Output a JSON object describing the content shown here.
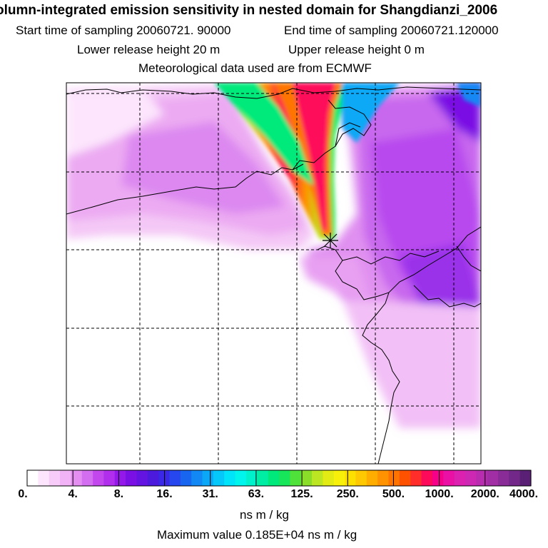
{
  "header": {
    "title": "olumn-integrated emission sensitivity in nested domain for Shangdianzi_2006",
    "start_time": "Start time of sampling 20060721. 90000",
    "end_time": "End time of sampling 20060721.120000",
    "lower_height": "Lower release height   20 m",
    "upper_height": "Upper release height    0 m",
    "met_data": "Meteorological data used are from ECMWF"
  },
  "colorbar": {
    "tick_labels": [
      "0.",
      "4.",
      "8.",
      "16.",
      "31.",
      "63.",
      "125.",
      "250.",
      "500.",
      "1000.",
      "2000.",
      "4000."
    ],
    "colors": [
      "#ffffff",
      "#fde6fd",
      "#f8ccf8",
      "#f2b2f6",
      "#e48ef2",
      "#d46ef0",
      "#c248ee",
      "#b02eec",
      "#9418ea",
      "#7a10e4",
      "#6414e0",
      "#4c1adc",
      "#3a28e6",
      "#2646ee",
      "#1866f0",
      "#1288f4",
      "#0aa8f6",
      "#06c8f8",
      "#00e4fa",
      "#00f6ec",
      "#00f2cc",
      "#00eea4",
      "#00ea7c",
      "#18e65a",
      "#4ee23a",
      "#8ade2a",
      "#bce622",
      "#e2ec14",
      "#f6f00a",
      "#fee000",
      "#ffc800",
      "#ffae00",
      "#ff9200",
      "#ff7400",
      "#ff5200",
      "#ff2e2a",
      "#fe0a5a",
      "#f6008a",
      "#ea10a6",
      "#dc20b0",
      "#cc28b4",
      "#b82cb0",
      "#a22ea6",
      "#8a2c98",
      "#722888",
      "#5a2076"
    ],
    "units": "ns m / kg"
  },
  "footer": {
    "max_value": "Maximum value  0.185E+04 ns m / kg"
  },
  "map": {
    "receptor_marker": "receptor-star",
    "frame_color": "#000000",
    "grid_style": "dashed"
  }
}
